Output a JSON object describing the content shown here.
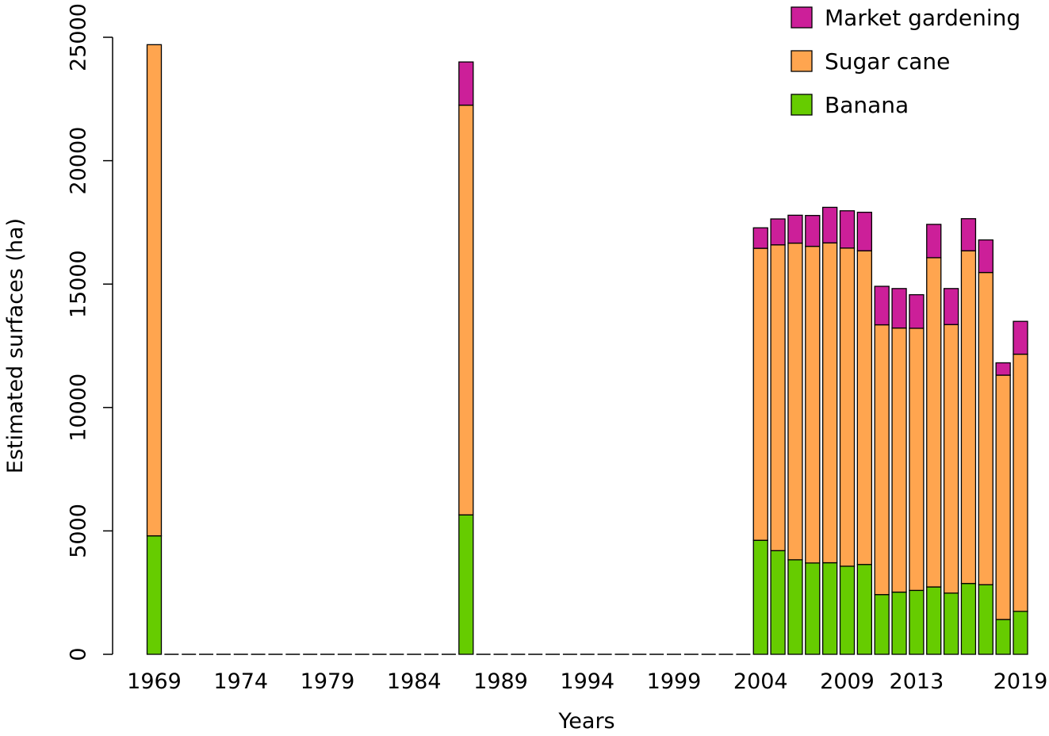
{
  "chart_data": {
    "type": "bar",
    "stacked": true,
    "xlabel": "Years",
    "ylabel": "Estimated surfaces (ha)",
    "ylim": [
      0,
      25000
    ],
    "yticks": [
      0,
      5000,
      10000,
      15000,
      20000,
      25000
    ],
    "x_tick_labels": [
      "1969",
      "1974",
      "1979",
      "1984",
      "1989",
      "1994",
      "1999",
      "2004",
      "2009",
      "2013",
      "2019"
    ],
    "categories": [
      "1969",
      "1970",
      "1971",
      "1972",
      "1973",
      "1974",
      "1975",
      "1976",
      "1977",
      "1978",
      "1979",
      "1980",
      "1981",
      "1982",
      "1983",
      "1984",
      "1985",
      "1986",
      "1987",
      "1988",
      "1989",
      "1990",
      "1991",
      "1992",
      "1993",
      "1994",
      "1995",
      "1996",
      "1997",
      "1998",
      "1999",
      "2000",
      "2001",
      "2002",
      "2003",
      "2004",
      "2005",
      "2006",
      "2007",
      "2008",
      "2009",
      "2010",
      "2011",
      "2012",
      "2013",
      "2014",
      "2015",
      "2016",
      "2017",
      "2018",
      "2019"
    ],
    "series": [
      {
        "name": "Banana",
        "color": "#66cc00",
        "values": [
          4800,
          0,
          0,
          0,
          0,
          0,
          0,
          0,
          0,
          0,
          0,
          0,
          0,
          0,
          0,
          0,
          0,
          0,
          5650,
          0,
          0,
          0,
          0,
          0,
          0,
          0,
          0,
          0,
          0,
          0,
          0,
          0,
          0,
          0,
          0,
          4620,
          4200,
          3830,
          3700,
          3710,
          3570,
          3640,
          2420,
          2520,
          2590,
          2730,
          2480,
          2870,
          2820,
          1410,
          1740
        ]
      },
      {
        "name": "Sugar cane",
        "color": "#ffa54f",
        "values": [
          19900,
          0,
          0,
          0,
          0,
          0,
          0,
          0,
          0,
          0,
          0,
          0,
          0,
          0,
          0,
          0,
          0,
          0,
          16600,
          0,
          0,
          0,
          0,
          0,
          0,
          0,
          0,
          0,
          0,
          0,
          0,
          0,
          0,
          0,
          0,
          11830,
          12390,
          12830,
          12830,
          12960,
          12890,
          12710,
          10930,
          10700,
          10620,
          13340,
          10880,
          13480,
          12650,
          9900,
          10420
        ]
      },
      {
        "name": "Market gardening",
        "color": "#cc1f99",
        "values": [
          0,
          0,
          0,
          0,
          0,
          0,
          0,
          0,
          0,
          0,
          0,
          0,
          0,
          0,
          0,
          0,
          0,
          0,
          1750,
          0,
          0,
          0,
          0,
          0,
          0,
          0,
          0,
          0,
          0,
          0,
          0,
          0,
          0,
          0,
          0,
          830,
          1050,
          1130,
          1250,
          1440,
          1510,
          1560,
          1560,
          1600,
          1360,
          1350,
          1460,
          1300,
          1320,
          500,
          1330
        ]
      }
    ],
    "legend_order": [
      "Market gardening",
      "Sugar cane",
      "Banana"
    ],
    "legend_position": "top-right",
    "grid": false
  }
}
